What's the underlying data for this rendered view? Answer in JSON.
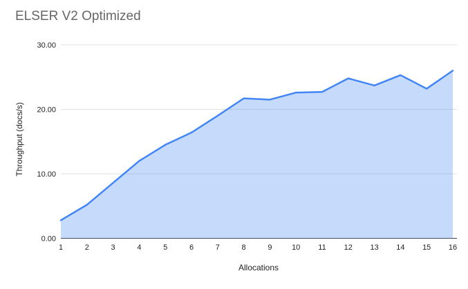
{
  "title": "ELSER V2 Optimized",
  "colors": {
    "background": "#ffffff",
    "title_text": "#666666",
    "axis_text": "#202124",
    "gridline": "#e0e0e0",
    "baseline": "#424242",
    "series_line": "#4285f4",
    "series_fill": "rgba(66,133,244,0.3)"
  },
  "chart_data": {
    "type": "area",
    "title": "ELSER V2 Optimized",
    "xlabel": "Allocations",
    "ylabel": "Throughput (docs/s)",
    "x": [
      1,
      2,
      3,
      4,
      5,
      6,
      7,
      8,
      9,
      10,
      11,
      12,
      13,
      14,
      15,
      16
    ],
    "series": [
      {
        "name": "Throughput (docs/s)",
        "values": [
          2.8,
          5.2,
          8.6,
          12.0,
          14.5,
          16.4,
          19.0,
          21.7,
          21.5,
          22.6,
          22.7,
          24.8,
          23.7,
          25.3,
          23.2,
          26.0
        ]
      }
    ],
    "ylim": [
      0,
      30
    ],
    "yticks": [
      0,
      10,
      20,
      30
    ],
    "ytick_labels": [
      "0.00",
      "10.00",
      "20.00",
      "30.00"
    ],
    "grid": true,
    "legend": "none"
  }
}
